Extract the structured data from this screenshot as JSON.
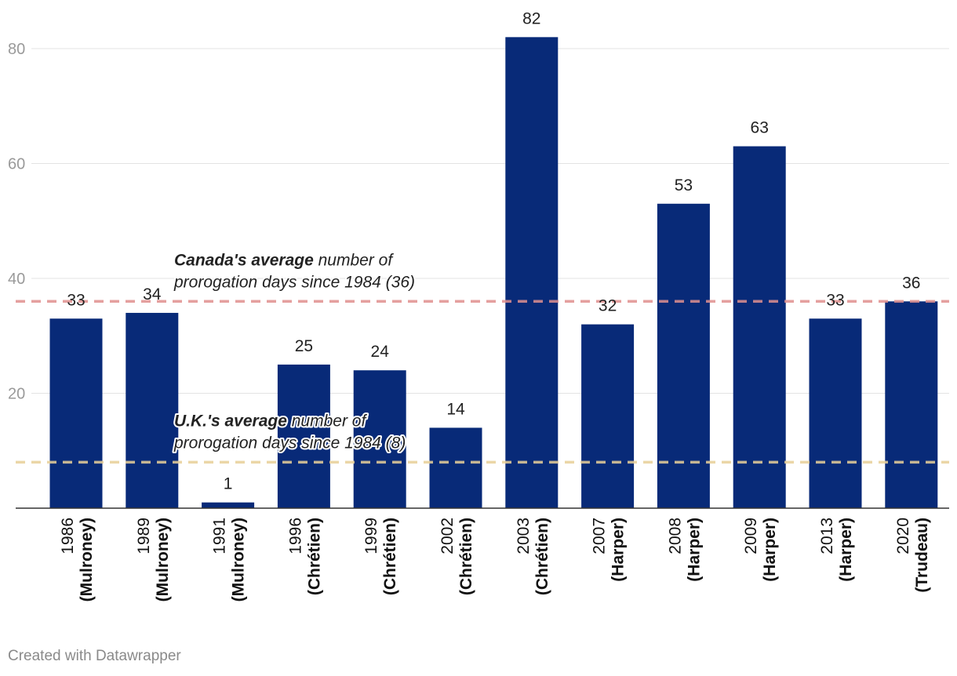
{
  "chart_data": {
    "type": "bar",
    "categories": [
      {
        "year": "1986",
        "pm": "(Mulroney)"
      },
      {
        "year": "1989",
        "pm": "(Mulroney)"
      },
      {
        "year": "1991",
        "pm": "(Mulroney)"
      },
      {
        "year": "1996",
        "pm": "(Chrétien)"
      },
      {
        "year": "1999",
        "pm": "(Chrétien)"
      },
      {
        "year": "2002",
        "pm": "(Chrétien)"
      },
      {
        "year": "2003",
        "pm": "(Chrétien)"
      },
      {
        "year": "2007",
        "pm": "(Harper)"
      },
      {
        "year": "2008",
        "pm": "(Harper)"
      },
      {
        "year": "2009",
        "pm": "(Harper)"
      },
      {
        "year": "2013",
        "pm": "(Harper)"
      },
      {
        "year": "2020",
        "pm": "(Trudeau)"
      }
    ],
    "values": [
      33,
      34,
      1,
      25,
      24,
      14,
      82,
      32,
      53,
      63,
      33,
      36
    ],
    "ylim": [
      0,
      80
    ],
    "yticks": [
      "20",
      "40",
      "60",
      "80"
    ],
    "bar_color": "#082a78",
    "reference_lines": [
      {
        "name": "canada-average",
        "value": 36,
        "color": "#e0908f",
        "label_bold": "Canada's average",
        "label_rest": " number of",
        "label_line2": "prorogation days since 1984 (36)"
      },
      {
        "name": "uk-average",
        "value": 8,
        "color": "#e8cf98",
        "label_bold": "U.K.'s average",
        "label_rest": " number of",
        "label_line2": "prorogation days since 1984 (8)"
      }
    ]
  },
  "footer": {
    "credit": "Created with Datawrapper"
  }
}
